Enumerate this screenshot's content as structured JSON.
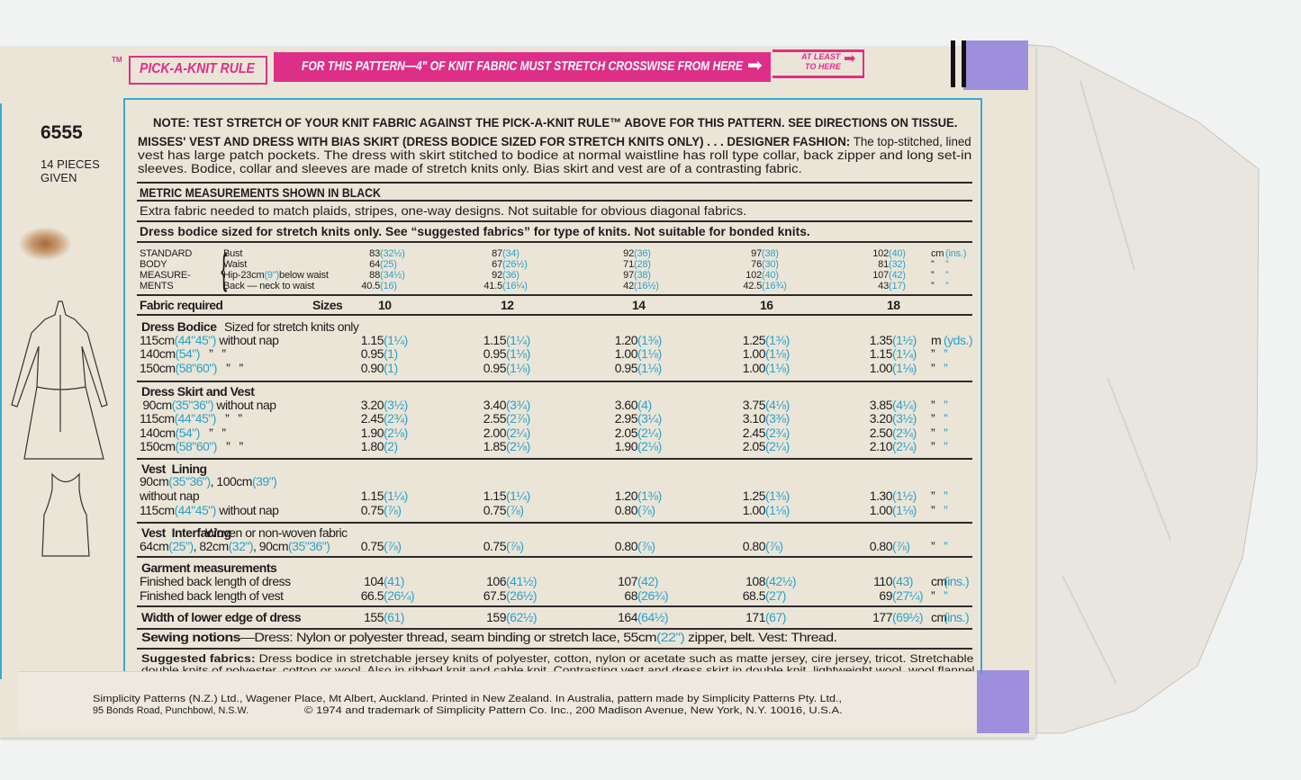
{
  "rule": {
    "tm": "TM",
    "pick_label": "PICK-A-KNIT RULE",
    "band_text": "FOR THIS PATTERN—4\" OF KNIT FABRIC MUST STRETCH CROSSWISE FROM HERE",
    "at_least": "AT LEAST",
    "to_here": "TO HERE"
  },
  "pattern": {
    "number": "6555",
    "pieces_line1": "14 PIECES",
    "pieces_line2": "GIVEN"
  },
  "note": "NOTE: TEST STRETCH OF YOUR KNIT FABRIC AGAINST THE PICK-A-KNIT RULE™ ABOVE FOR THIS PATTERN. SEE DIRECTIONS ON TISSUE.",
  "description": {
    "heading": "MISSES' VEST AND DRESS WITH BIAS SKIRT (DRESS BODICE SIZED FOR STRETCH KNITS ONLY) . . . DESIGNER FASHION:",
    "lines": [
      "The top-stitched, lined",
      "vest has large patch pockets. The dress with skirt stitched to bodice at normal waistline has roll type collar, back zipper and long set-in",
      "sleeves. Bodice, collar and sleeves are made of stretch knits only. Bias skirt and vest are of a contrasting fabric."
    ]
  },
  "metric_heading": "METRIC MEASUREMENTS SHOWN IN BLACK",
  "extra_fabric": "Extra fabric needed to match plaids, stripes, one-way designs. Not suitable for obvious diagonal fabrics.",
  "stretch_note": "Dress bodice sized for stretch knits only. See “suggested fabrics” for type of knits. Not suitable for bonded knits.",
  "body": {
    "heading": [
      "STANDARD",
      "BODY",
      "MEASURE-",
      "MENTS"
    ],
    "rows": [
      {
        "label": "Bust",
        "values": [
          "83(32½)",
          "87(34)",
          "92(36)",
          "97(38)",
          "102(40)"
        ],
        "unit": [
          "cm",
          "(ins.)"
        ]
      },
      {
        "label": "Waist",
        "values": [
          "64(25)",
          "67(26½)",
          "71(28)",
          "76(30)",
          "81(32)"
        ],
        "unit": [
          "”",
          "”"
        ]
      },
      {
        "label": "Hip-23cm(9\")below waist",
        "values": [
          "88(34½)",
          "92(36)",
          "97(38)",
          "102(40)",
          "107(42)"
        ],
        "unit": [
          "”",
          "”"
        ]
      },
      {
        "label": "Back — neck to waist",
        "values": [
          "40.5(16)",
          "41.5(16¼)",
          "42(16½)",
          "42.5(16¾)",
          "43(17)"
        ],
        "unit": [
          "”",
          "”"
        ]
      }
    ]
  },
  "fabric_required": "Fabric required",
  "sizes_label": "Sizes",
  "sizes": [
    "10",
    "12",
    "14",
    "16",
    "18"
  ],
  "sections": [
    {
      "title": "Dress Bodice",
      "subtitle": "Sized for stretch knits only",
      "rows": [
        {
          "label": "115cm(44\"45\") without nap",
          "values": [
            "1.15(1¼)",
            "1.15(1¼)",
            "1.20(1⅜)",
            "1.25(1⅜)",
            "1.35(1½)"
          ],
          "unit": [
            "m",
            "(yds.)"
          ]
        },
        {
          "label": "140cm(54\")   ”   ”",
          "values": [
            "0.95(1)",
            "0.95(1⅛)",
            "1.00(1⅛)",
            "1.00(1⅛)",
            "1.15(1¼)"
          ],
          "unit": [
            "”",
            "”"
          ]
        },
        {
          "label": "150cm(58\"60\")   ”   ”",
          "values": [
            "0.90(1)",
            "0.95(1⅛)",
            "0.95(1⅛)",
            "1.00(1⅛)",
            "1.00(1⅛)"
          ],
          "unit": [
            "”",
            "”"
          ]
        }
      ]
    },
    {
      "title": "Dress Skirt and Vest",
      "subtitle": "",
      "rows": [
        {
          "label": " 90cm(35\"36\") without nap",
          "values": [
            "3.20(3½)",
            "3.40(3¾)",
            "3.60(4)",
            "3.75(4⅛)",
            "3.85(4¼)"
          ],
          "unit": [
            "”",
            "”"
          ]
        },
        {
          "label": "115cm(44\"45\")   ”   ”",
          "values": [
            "2.45(2¾)",
            "2.55(2⅞)",
            "2.95(3¼)",
            "3.10(3⅜)",
            "3.20(3½)"
          ],
          "unit": [
            "”",
            "”"
          ]
        },
        {
          "label": "140cm(54\")   ”   ”",
          "values": [
            "1.90(2⅛)",
            "2.00(2¼)",
            "2.05(2¼)",
            "2.45(2¾)",
            "2.50(2¾)"
          ],
          "unit": [
            "”",
            "”"
          ]
        },
        {
          "label": "150cm(58\"60\")   ”   ”",
          "values": [
            "1.80(2)",
            "1.85(2⅛)",
            "1.90(2⅛)",
            "2.05(2¼)",
            "2.10(2¼)"
          ],
          "unit": [
            "”",
            "”"
          ]
        }
      ]
    },
    {
      "title": "Vest  Lining",
      "subtitle": "",
      "rows": [
        {
          "label": "90cm(35\"36\"), 100cm(39\")"
        },
        {
          "label": "without nap",
          "values": [
            "1.15(1¼)",
            "1.15(1¼)",
            "1.20(1⅜)",
            "1.25(1⅜)",
            "1.30(1½)"
          ],
          "unit": [
            "”",
            "”"
          ]
        },
        {
          "label": "115cm(44\"45\") without nap",
          "values": [
            "0.75(⅞)",
            "0.75(⅞)",
            "0.80(⅞)",
            "1.00(1⅛)",
            "1.00(1⅛)"
          ],
          "unit": [
            "”",
            "”"
          ]
        }
      ]
    },
    {
      "title": "Vest  Interfacing",
      "subtitle": "Woven or non-woven fabric",
      "rows": [
        {
          "label": "64cm(25\"), 82cm(32\"), 90cm(35\"36\")",
          "values": [
            "0.75(⅞)",
            "0.75(⅞)",
            "0.80(⅞)",
            "0.80(⅞)",
            "0.80(⅞)"
          ],
          "unit": [
            "”",
            "”"
          ]
        }
      ]
    },
    {
      "title": "Garment measurements",
      "subtitle": "",
      "rows": [
        {
          "label": "Finished back length of dress",
          "values": [
            "104(41)",
            "106(41½)",
            "107(42)",
            "108(42½)",
            "110(43)"
          ],
          "unit": [
            "cm",
            "(ins.)"
          ]
        },
        {
          "label": "Finished back length of vest",
          "values": [
            "66.5(26¼)",
            "67.5(26½)",
            "68(26¾)",
            "68.5(27)",
            "69(27¼)"
          ],
          "unit": [
            "”",
            "”"
          ]
        }
      ]
    },
    {
      "title": "Width of lower edge of dress",
      "subtitle": "",
      "values": [
        "155(61)",
        "159(62½)",
        "164(64½)",
        "171(67)",
        "177(69½)"
      ],
      "unit": [
        "cm",
        "(ins.)"
      ],
      "rows": []
    }
  ],
  "sewing": {
    "heading": "Sewing notions",
    "text": "—Dress: Nylon or polyester thread, seam binding or stretch lace, 55cm(22\") zipper, belt. Vest: Thread."
  },
  "suggested": {
    "heading": "Suggested fabrics:",
    "lines": [
      "Dress bodice in stretchable jersey knits of polyester, cotton, nylon or acetate such as matte jersey, cire jersey, tricot. Stretchable",
      "double knits of polyester, cotton or wool. Also in ribbed knit and cable knit. Contrasting vest and dress skirt in double knit, lightweight wool, wool flannel"
    ]
  },
  "footer": {
    "line1": "Simplicity Patterns (N.Z.) Ltd., Wagener Place, Mt Albert, Auckland. Printed in New Zealand. In Australia, pattern made by Simplicity Patterns Pty. Ltd.,",
    "line2a": "95 Bonds Road, Punchbowl, N.S.W.",
    "line2b": "© 1974 and trademark of Simplicity Pattern Co. Inc., 200 Madison Avenue, New York, N.Y. 10016, U.S.A."
  },
  "colors": {
    "magenta": "#de2f88",
    "imperial_blue": "#2aa2c9",
    "border_blue": "#39a9cf",
    "tab_purple": "#9e8fdc",
    "paper": "#ebe5d8"
  },
  "illustrations": [
    "dress-sketch-icon",
    "vest-sketch-icon"
  ]
}
